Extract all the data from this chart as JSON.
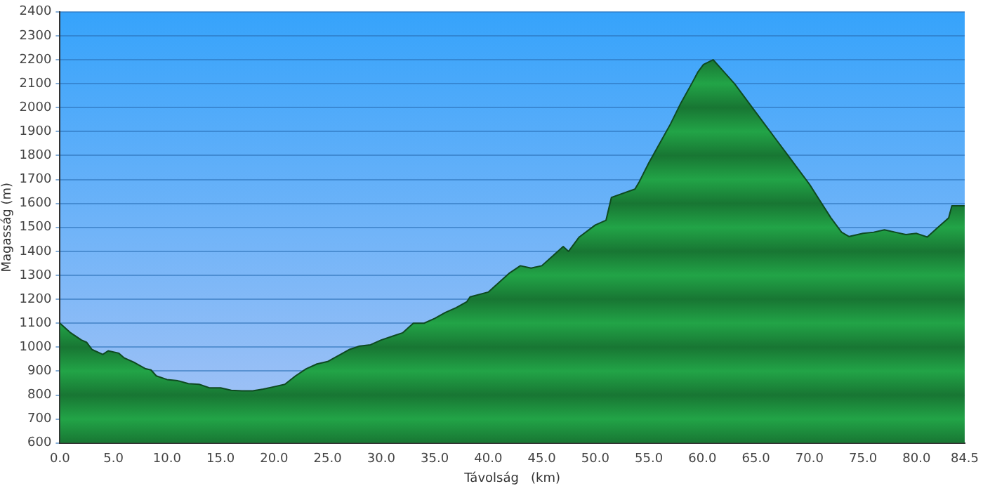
{
  "chart_data": {
    "type": "area",
    "xlabel": "Távolság   (km)",
    "ylabel": "Magasság (m)",
    "color": "#22a447",
    "grid": "y",
    "legend": false,
    "marker": "none",
    "xlim": [
      0,
      84.5
    ],
    "ylim": [
      600,
      2400
    ],
    "xticks": [
      {
        "value": 0,
        "label": "0.0"
      },
      {
        "value": 5,
        "label": "5.0"
      },
      {
        "value": 10,
        "label": "10.0"
      },
      {
        "value": 15,
        "label": "15.0"
      },
      {
        "value": 20,
        "label": "20.0"
      },
      {
        "value": 25,
        "label": "25.0"
      },
      {
        "value": 30,
        "label": "30.0"
      },
      {
        "value": 35,
        "label": "35.0"
      },
      {
        "value": 40,
        "label": "40.0"
      },
      {
        "value": 45,
        "label": "45.0"
      },
      {
        "value": 50,
        "label": "50.0"
      },
      {
        "value": 55,
        "label": "55.0"
      },
      {
        "value": 60,
        "label": "60.0"
      },
      {
        "value": 65,
        "label": "65.0"
      },
      {
        "value": 70,
        "label": "70.0"
      },
      {
        "value": 75,
        "label": "75.0"
      },
      {
        "value": 80,
        "label": "80.0"
      },
      {
        "value": 84.5,
        "label": "84.5"
      }
    ],
    "yticks": [
      600,
      700,
      800,
      900,
      1000,
      1100,
      1200,
      1300,
      1400,
      1500,
      1600,
      1700,
      1800,
      1900,
      2000,
      2100,
      2200,
      2300,
      2400
    ],
    "x": [
      0,
      1,
      2,
      2.5,
      3,
      4,
      4.5,
      5.5,
      6,
      7,
      8,
      8.5,
      9,
      10,
      11,
      12,
      13,
      14,
      15,
      16,
      17,
      18,
      19,
      20,
      21,
      22,
      23,
      24,
      25,
      26,
      27,
      28,
      29,
      30,
      31,
      32,
      33,
      34,
      35,
      36,
      37,
      38,
      38.3,
      40,
      41,
      42,
      43,
      44,
      45,
      46,
      47,
      47.5,
      48.5,
      50,
      51,
      51.5,
      53.7,
      54.1,
      55,
      56,
      57,
      58,
      59,
      59.6,
      60.1,
      61,
      62,
      63,
      64,
      65,
      66,
      67,
      68,
      69,
      70,
      71,
      72,
      73,
      73.7,
      74.5,
      75,
      76,
      77,
      78,
      79,
      80,
      81,
      82,
      83,
      83.3,
      84.5
    ],
    "values": [
      1100,
      1060,
      1030,
      1020,
      990,
      970,
      985,
      975,
      955,
      935,
      910,
      905,
      880,
      865,
      860,
      848,
      845,
      830,
      830,
      820,
      818,
      818,
      825,
      835,
      845,
      880,
      910,
      930,
      940,
      965,
      990,
      1005,
      1010,
      1030,
      1045,
      1060,
      1100,
      1100,
      1120,
      1145,
      1165,
      1190,
      1210,
      1230,
      1270,
      1310,
      1340,
      1330,
      1340,
      1380,
      1420,
      1400,
      1460,
      1510,
      1530,
      1625,
      1660,
      1690,
      1770,
      1850,
      1930,
      2020,
      2100,
      2150,
      2180,
      2200,
      2150,
      2100,
      2040,
      1980,
      1920,
      1860,
      1800,
      1740,
      1680,
      1610,
      1540,
      1480,
      1462,
      1470,
      1475,
      1480,
      1490,
      1480,
      1470,
      1475,
      1460,
      1500,
      1540,
      1590,
      1590
    ]
  }
}
